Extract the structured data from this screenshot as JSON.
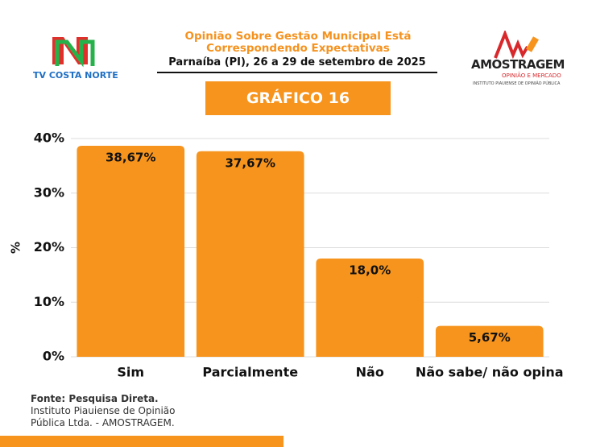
{
  "chart_data": {
    "type": "bar",
    "title": "Opinião Sobre Gestão Municipal Está Correspondendo Expectativas",
    "subtitle": "Parnaíba (PI), 26 a 29 de setembro de 2025",
    "badge": "GRÁFICO 16",
    "y_label": "%",
    "categories": [
      "Sim",
      "Parcialmente",
      "Não",
      "Não sabe/ não opina"
    ],
    "values": [
      38.67,
      37.67,
      18.0,
      5.67
    ],
    "value_labels": [
      "38,67%",
      "37,67%",
      "18,0%",
      "5,67%"
    ],
    "color": "#f7941d",
    "ylim": [
      0,
      40
    ],
    "yticks": [
      {
        "value": 0,
        "label": "0%"
      },
      {
        "value": 10,
        "label": "10%"
      },
      {
        "value": 20,
        "label": "20%"
      },
      {
        "value": 30,
        "label": "30%"
      },
      {
        "value": 40,
        "label": "40%"
      }
    ],
    "grid": true
  },
  "logos": {
    "left": "TV COSTA NORTE",
    "right": "AMOSTRAGEM",
    "right_tagline": "OPINIÃO E MERCADO",
    "right_sub": "INSTITUTO PIAUIENSE DE OPINIÃO PÚBLICA"
  },
  "source": {
    "heading": "Fonte: Pesquisa Direta.",
    "text": "Instituto Piauiense de Opinião Pública Ltda. - AMOSTRAGEM."
  }
}
